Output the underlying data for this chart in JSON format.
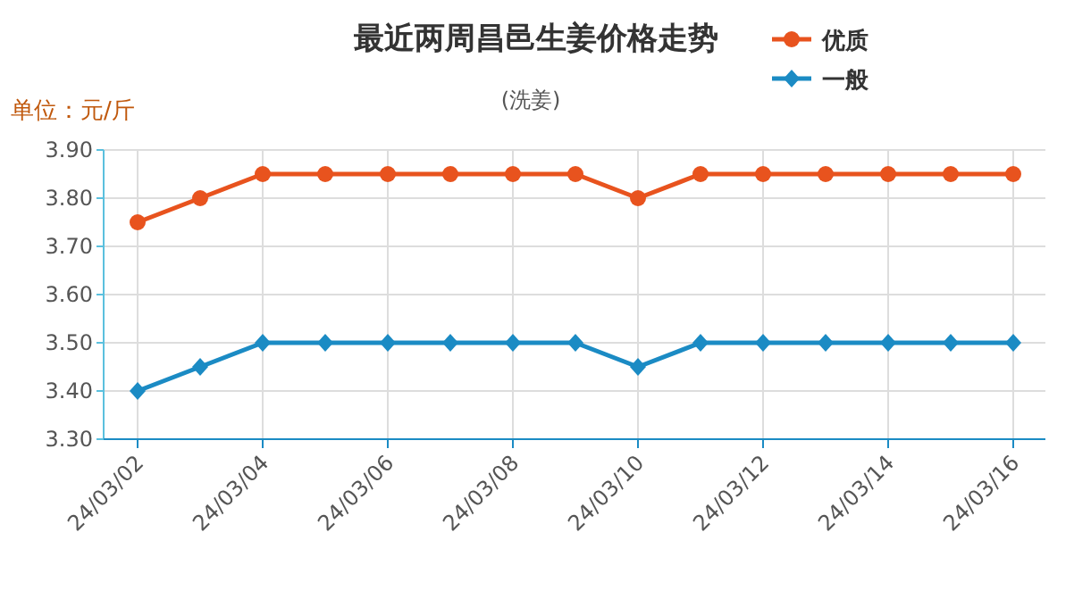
{
  "chart_data": {
    "type": "line",
    "title": "最近两周昌邑生姜价格走势",
    "subtitle": "(洗姜)",
    "ylabel": "单位：元/斤",
    "categories": [
      "24/03/02",
      null,
      "24/03/04",
      null,
      "24/03/06",
      null,
      "24/03/08",
      null,
      "24/03/10",
      null,
      "24/03/12",
      null,
      "24/03/14",
      null,
      "24/03/16"
    ],
    "series": [
      {
        "name": "优质",
        "color": "#e8531e",
        "marker": "circle",
        "values": [
          3.75,
          3.8,
          3.85,
          3.85,
          3.85,
          3.85,
          3.85,
          3.85,
          3.8,
          3.85,
          3.85,
          3.85,
          3.85,
          3.85,
          3.85
        ]
      },
      {
        "name": "一般",
        "color": "#1b8bc4",
        "marker": "diamond",
        "values": [
          3.4,
          3.45,
          3.5,
          3.5,
          3.5,
          3.5,
          3.5,
          3.5,
          3.45,
          3.5,
          3.5,
          3.5,
          3.5,
          3.5,
          3.5
        ]
      }
    ],
    "ylim": [
      3.3,
      3.9
    ],
    "yticks": [
      {
        "value": 3.3,
        "label": "3.30"
      },
      {
        "value": 3.4,
        "label": "3.40"
      },
      {
        "value": 3.5,
        "label": "3.50"
      },
      {
        "value": 3.6,
        "label": "3.60"
      },
      {
        "value": 3.7,
        "label": "3.70"
      },
      {
        "value": 3.8,
        "label": "3.80"
      },
      {
        "value": 3.9,
        "label": "3.90"
      }
    ],
    "grid": true,
    "legend": "top right",
    "line_style": "solid"
  }
}
